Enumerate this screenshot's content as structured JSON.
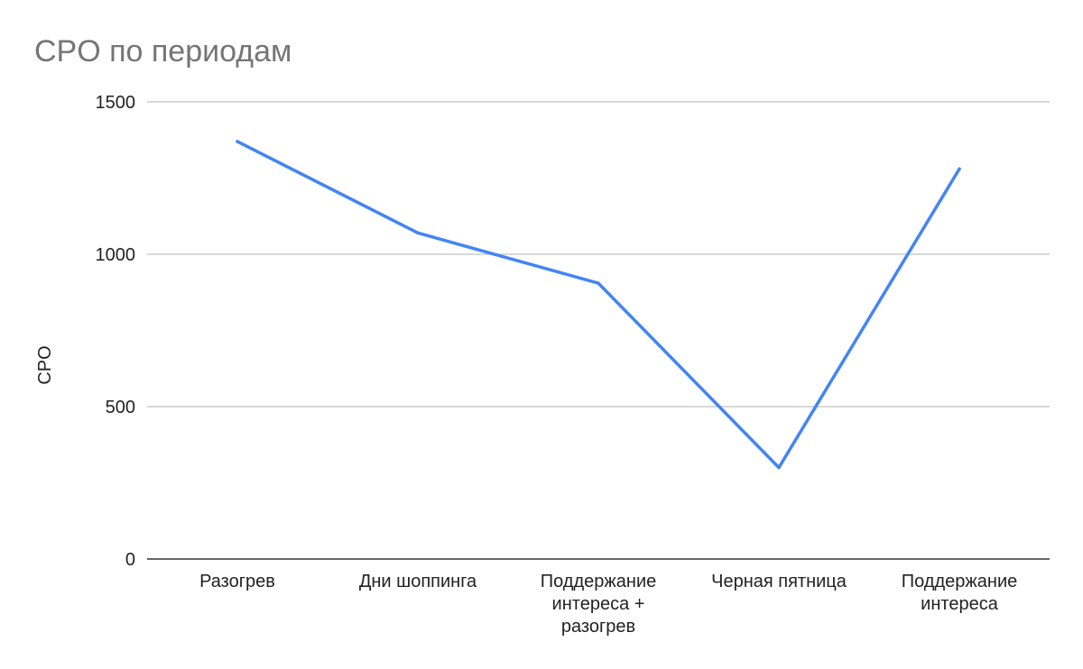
{
  "chart_data": {
    "type": "line",
    "title": "CPO по периодам",
    "xlabel": "",
    "ylabel": "CPO",
    "ylim": [
      0,
      1500
    ],
    "yticks": [
      0,
      500,
      1000,
      1500
    ],
    "grid": true,
    "legend": "none",
    "categories": [
      [
        "Разогрев"
      ],
      [
        "Дни шоппинга"
      ],
      [
        "Поддержание",
        "интереса +",
        "разогрев"
      ],
      [
        "Черная пятница"
      ],
      [
        "Поддержание",
        "интереса"
      ]
    ],
    "series": [
      {
        "values": [
          1370,
          1070,
          905,
          300,
          1280
        ],
        "color": "#4285f4"
      }
    ]
  }
}
